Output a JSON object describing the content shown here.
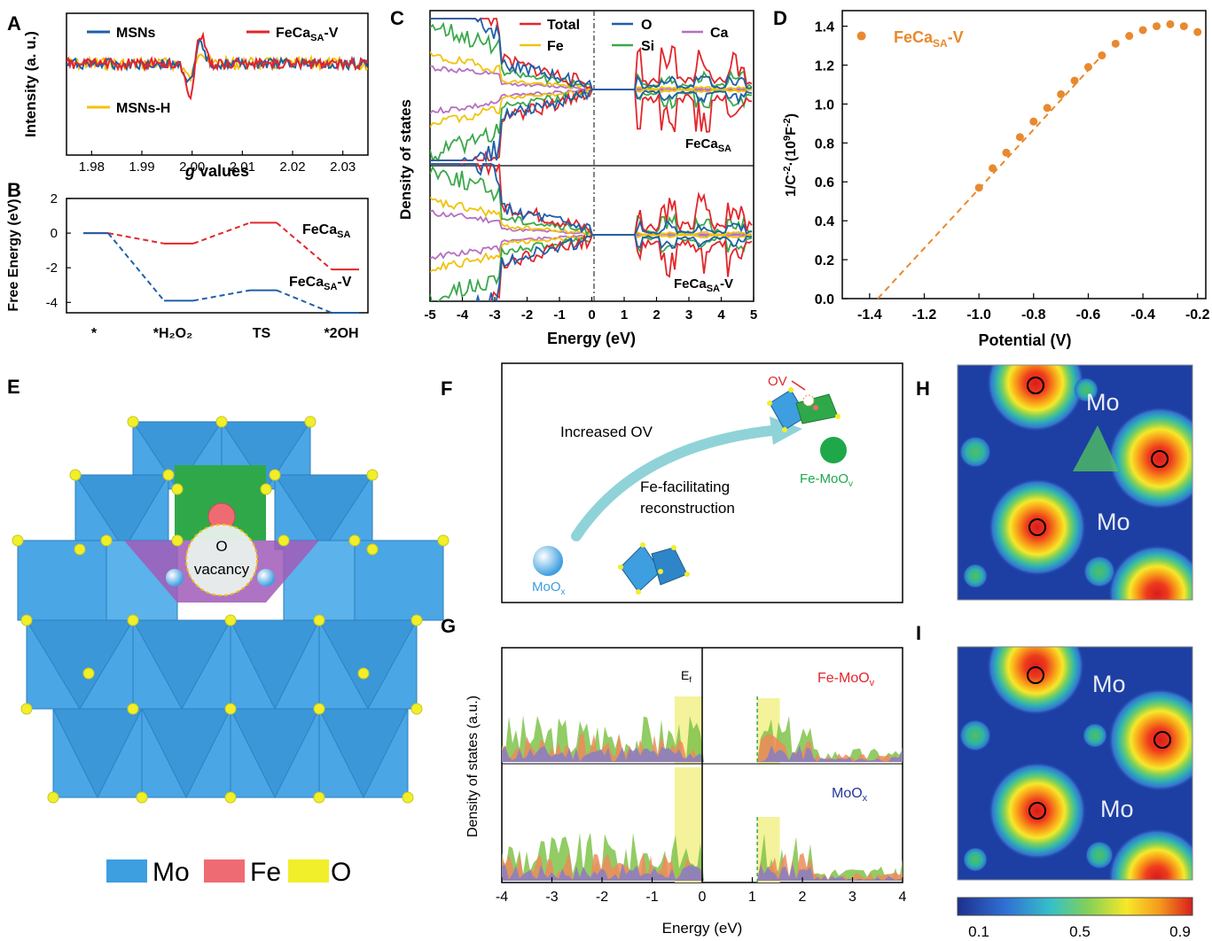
{
  "panel_letters": {
    "A": "A",
    "B": "B",
    "C": "C",
    "D": "D",
    "E": "E",
    "F": "F",
    "G": "G",
    "H": "H",
    "I": "I"
  },
  "colors": {
    "blue": "#1f5fa8",
    "red": "#e3262b",
    "yellow": "#f2c20c",
    "green": "#3aa84a",
    "purple": "#b66fc2",
    "orange": "#e8892e",
    "mo_blue": "#3d9ee0",
    "fe_red": "#ef6b73",
    "o_yellow": "#f1ee2a",
    "map_bg": "#1d3fa3",
    "label_red": "#e3262b",
    "label_green": "#1fa84a",
    "label_navy": "#24369b",
    "dos_fill_green": "#7fc34a",
    "dos_fill_orange": "#ef8a5a",
    "dos_fill_purple": "#8b7fbf",
    "ef_band": "#f4f29a",
    "ov_arrow": "#8fd3d8"
  },
  "chart_data": [
    {
      "panel": "A",
      "type": "line",
      "ylabel": "Intensity (a. u.)",
      "xlabel": "g values",
      "xlabel_italic_part": "g",
      "xticks": [
        "1.98",
        "1.99",
        "2.00",
        "2.01",
        "2.02",
        "2.03"
      ],
      "xlim": [
        1.975,
        2.035
      ],
      "series": [
        {
          "name": "MSNs",
          "color": "#1f5fa8"
        },
        {
          "name": "FeCa",
          "sub": "SA",
          "suffix": "-V",
          "color": "#e3262b"
        },
        {
          "name": "MSNs-H",
          "color": "#f2c20c"
        }
      ]
    },
    {
      "panel": "B",
      "type": "line",
      "ylabel": "Free Energy (eV)",
      "yticks": [
        "2",
        "0",
        "-2",
        "-4"
      ],
      "ylim": [
        -4.6,
        2
      ],
      "categories": [
        "*",
        "*H₂O₂",
        "TS",
        "*2OH"
      ],
      "series": [
        {
          "name": "FeCa",
          "sub": "SA",
          "suffix": "",
          "color": "#e3262b",
          "values": [
            0,
            -0.6,
            0.6,
            -2.1
          ]
        },
        {
          "name": "FeCa",
          "sub": "SA",
          "suffix": "-V",
          "color": "#1f5fa8",
          "values": [
            0,
            -3.9,
            -3.3,
            -4.6
          ]
        }
      ]
    },
    {
      "panel": "C",
      "type": "line",
      "ylabel": "Density of states",
      "xlabel": "Energy (eV)",
      "xticks": [
        "-5",
        "-4",
        "-3",
        "-2",
        "-1",
        "0",
        "1",
        "2",
        "3",
        "4",
        "5"
      ],
      "xlim": [
        -5,
        5
      ],
      "legend": [
        {
          "label": "Total",
          "color": "#e3262b"
        },
        {
          "label": "O",
          "color": "#1f5fa8"
        },
        {
          "label": "Ca",
          "color": "#b66fc2"
        },
        {
          "label": "Fe",
          "color": "#f2c20c"
        },
        {
          "label": "Si",
          "color": "#3aa84a"
        }
      ],
      "subpanels": [
        {
          "name": "FeCa",
          "sub": "SA",
          "suffix": ""
        },
        {
          "name": "FeCa",
          "sub": "SA",
          "suffix": "-V"
        }
      ]
    },
    {
      "panel": "D",
      "type": "scatter",
      "legend": {
        "name": "FeCa",
        "sub": "SA",
        "suffix": "-V"
      },
      "ylabel_parts": {
        "a": "1/C",
        "b": "-2",
        "c": "·(10",
        "d": "9",
        "e": "F",
        "f": "-2",
        "g": ")"
      },
      "xlabel": "Potential (V)",
      "xticks": [
        "-1.4",
        "-1.2",
        "-1.0",
        "-0.8",
        "-0.6",
        "-0.4",
        "-0.2"
      ],
      "xlim": [
        -1.5,
        -0.17
      ],
      "yticks": [
        "0.0",
        "0.2",
        "0.4",
        "0.6",
        "0.8",
        "1.0",
        "1.2",
        "1.4"
      ],
      "ylim": [
        0,
        1.48
      ],
      "x": [
        -1.0,
        -0.95,
        -0.9,
        -0.85,
        -0.8,
        -0.75,
        -0.7,
        -0.65,
        -0.6,
        -0.55,
        -0.5,
        -0.45,
        -0.4,
        -0.35,
        -0.3,
        -0.25,
        -0.2
      ],
      "y": [
        0.57,
        0.67,
        0.75,
        0.83,
        0.91,
        0.98,
        1.05,
        1.12,
        1.19,
        1.25,
        1.31,
        1.35,
        1.38,
        1.4,
        1.41,
        1.4,
        1.37
      ],
      "fit_line": {
        "x": [
          -1.37,
          -0.55
        ],
        "y": [
          0,
          1.25
        ]
      },
      "legend_marker_x": -1.43,
      "legend_marker_y": 1.35
    },
    {
      "panel": "G",
      "type": "area",
      "ylabel": "Density of states (a.u.)",
      "xlabel": "Energy (eV)",
      "xticks": [
        "-4",
        "-3",
        "-2",
        "-1",
        "0",
        "1",
        "2",
        "3",
        "4"
      ],
      "xlim": [
        -4,
        4
      ],
      "ef_label": "E",
      "ef_sub": "f",
      "subpanels": [
        {
          "name": "Fe-MoO",
          "sub": "v",
          "color": "#e3262b"
        },
        {
          "name": "MoO",
          "sub": "x",
          "color": "#24369b"
        }
      ]
    },
    {
      "panel": "HI",
      "type": "heatmap",
      "colorbar_ticks": [
        "0.1",
        "0.5",
        "0.9"
      ],
      "h_labels": [
        "Mo",
        "Mo"
      ],
      "i_labels": [
        "Mo",
        "Mo"
      ]
    }
  ],
  "panel_e": {
    "vacancy_o": "O",
    "vacancy_word": "vacancy",
    "legend": [
      {
        "label": "Mo",
        "color": "#3d9ee0"
      },
      {
        "label": "Fe",
        "color": "#ef6b73"
      },
      {
        "label": "O",
        "color": "#f1ee2a"
      }
    ]
  },
  "panel_f": {
    "increased": "Increased OV",
    "fe_facilitating": "Fe-facilitating",
    "reconstruction": "reconstruction",
    "ov": "OV",
    "fe_moo": "Fe-MoO",
    "fe_moo_sub": "v",
    "moo": "MoO",
    "moo_sub": "x"
  }
}
